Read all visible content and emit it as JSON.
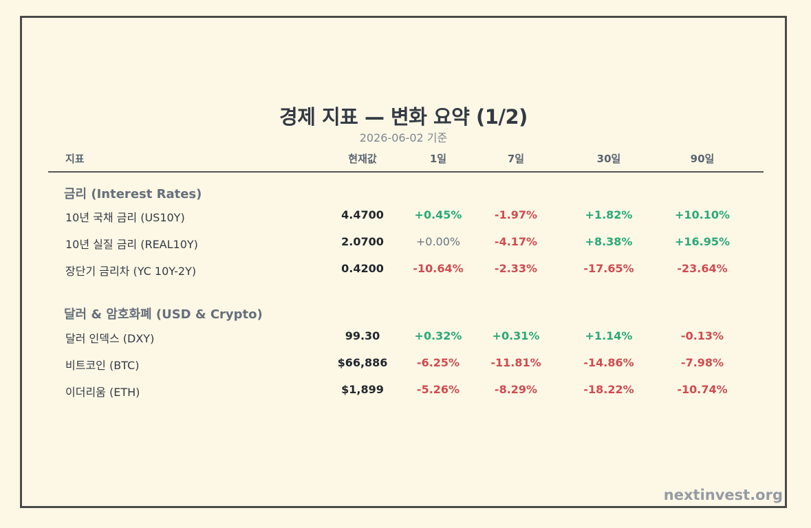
{
  "title": "경제 지표 — 변화 요약 (1/2)",
  "subtitle": "2026-06-02 기준",
  "headers": {
    "name": "지표",
    "current": "현재값",
    "d1": "1일",
    "d7": "7일",
    "d30": "30일",
    "d90": "90일"
  },
  "sections": [
    {
      "title": "금리 (Interest Rates)",
      "rows": [
        {
          "name": "10년 국채 금리 (US10Y)",
          "current": "4.4700",
          "d1": "+0.45%",
          "d7": "-1.97%",
          "d30": "+1.82%",
          "d90": "+10.10%"
        },
        {
          "name": "10년 실질 금리 (REAL10Y)",
          "current": "2.0700",
          "d1": "+0.00%",
          "d7": "-4.17%",
          "d30": "+8.38%",
          "d90": "+16.95%"
        },
        {
          "name": "장단기 금리차 (YC 10Y-2Y)",
          "current": "0.4200",
          "d1": "-10.64%",
          "d7": "-2.33%",
          "d30": "-17.65%",
          "d90": "-23.64%"
        }
      ]
    },
    {
      "title": "달러 & 암호화폐 (USD & Crypto)",
      "rows": [
        {
          "name": "달러 인덱스 (DXY)",
          "current": "99.30",
          "d1": "+0.32%",
          "d7": "+0.31%",
          "d30": "+1.14%",
          "d90": "-0.13%"
        },
        {
          "name": "비트코인 (BTC)",
          "current": "$66,886",
          "d1": "-6.25%",
          "d7": "-11.81%",
          "d30": "-14.86%",
          "d90": "-7.98%"
        },
        {
          "name": "이더리움 (ETH)",
          "current": "$1,899",
          "d1": "-5.26%",
          "d7": "-8.29%",
          "d30": "-18.22%",
          "d90": "-10.74%"
        }
      ]
    }
  ],
  "colors": {
    "positive": "#2aa979",
    "negative": "#d04b50",
    "neutral": "#6b7480"
  },
  "brand": "nextinvest.org"
}
